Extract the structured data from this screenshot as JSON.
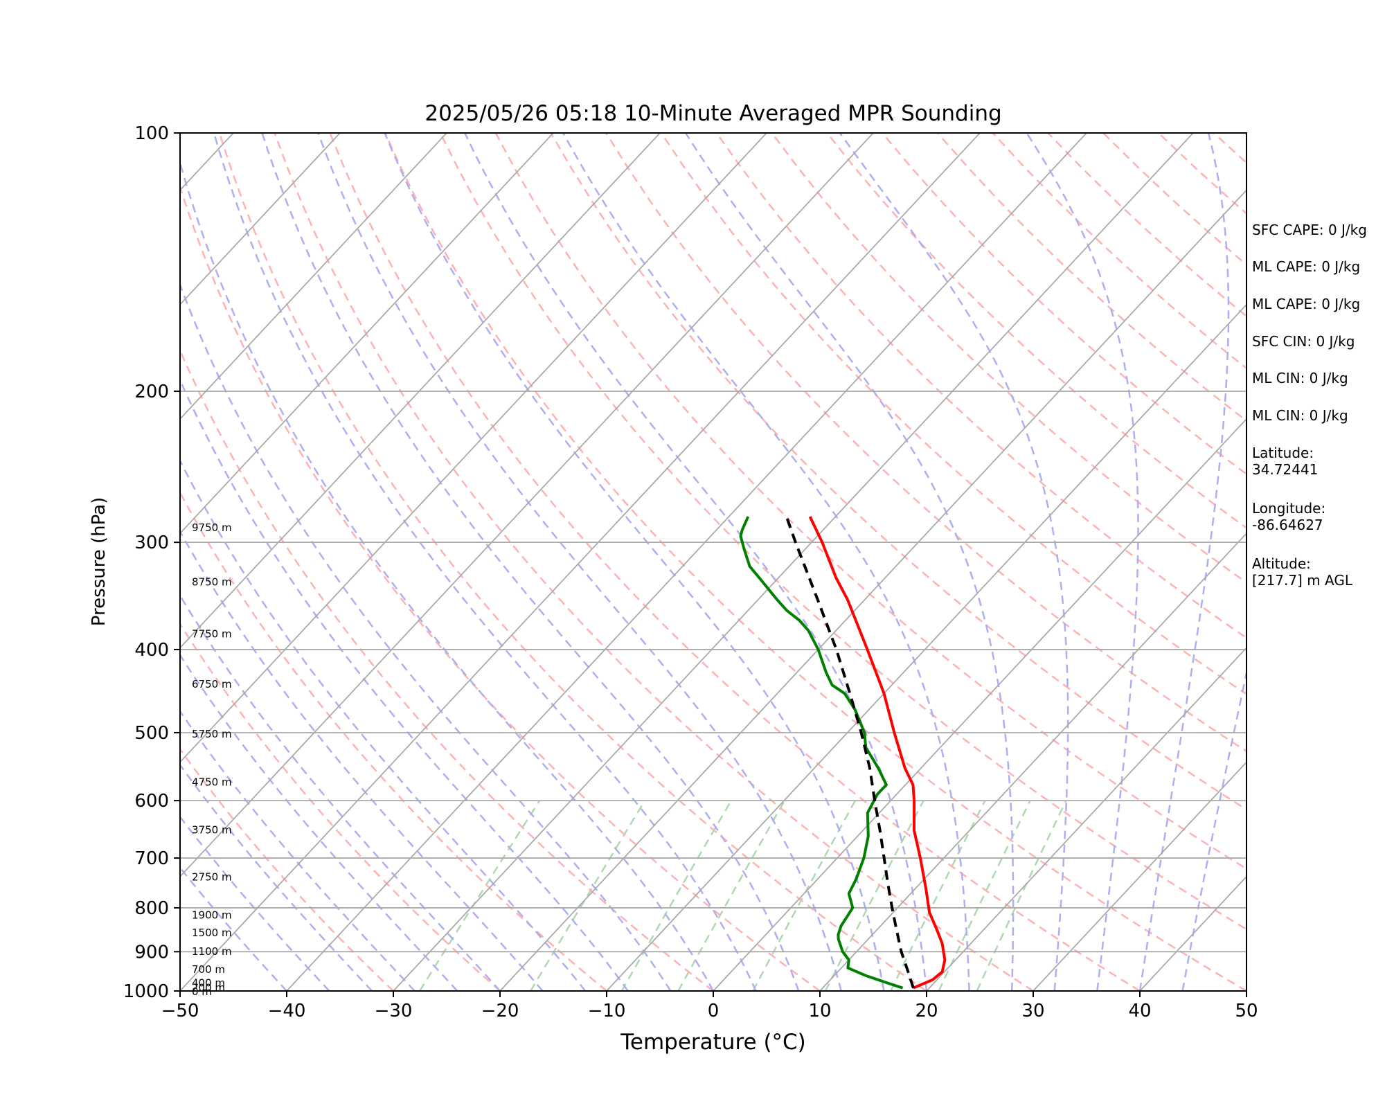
{
  "chart_data": {
    "type": "line",
    "title": "2025/05/26 05:18 10-Minute Averaged MPR Sounding",
    "xlabel": "Temperature (°C)",
    "ylabel": "Pressure (hPa)",
    "xlim": [
      -50,
      50
    ],
    "ylim": [
      1000,
      100
    ],
    "y_scale": "log",
    "grid": true,
    "x_ticks": [
      "−50",
      "−40",
      "−30",
      "−20",
      "−10",
      "0",
      "10",
      "20",
      "30",
      "40",
      "50"
    ],
    "y_ticks": [
      "100",
      "200",
      "300",
      "400",
      "500",
      "600",
      "700",
      "800",
      "900",
      "1000"
    ],
    "height_labels": [
      {
        "pressure": 1000,
        "label": "0 m"
      },
      {
        "pressure": 990,
        "label": "200 m"
      },
      {
        "pressure": 977,
        "label": "400 m"
      },
      {
        "pressure": 942,
        "label": "700 m"
      },
      {
        "pressure": 898,
        "label": "1100 m"
      },
      {
        "pressure": 854,
        "label": "1500 m"
      },
      {
        "pressure": 814,
        "label": "1900 m"
      },
      {
        "pressure": 735,
        "label": "2750 m"
      },
      {
        "pressure": 648,
        "label": "3750 m"
      },
      {
        "pressure": 570,
        "label": "4750 m"
      },
      {
        "pressure": 501,
        "label": "5750 m"
      },
      {
        "pressure": 438,
        "label": "6750 m"
      },
      {
        "pressure": 383,
        "label": "7750 m"
      },
      {
        "pressure": 333,
        "label": "8750 m"
      },
      {
        "pressure": 288,
        "label": "9750 m"
      }
    ],
    "series": [
      {
        "role": "temperature",
        "color": "#ff0000",
        "style": "solid",
        "points": [
          {
            "p": 992,
            "t": 18.5
          },
          {
            "p": 970,
            "t": 19.6
          },
          {
            "p": 950,
            "t": 19.8
          },
          {
            "p": 920,
            "t": 19.0
          },
          {
            "p": 880,
            "t": 17.3
          },
          {
            "p": 850,
            "t": 15.7
          },
          {
            "p": 810,
            "t": 13.4
          },
          {
            "p": 760,
            "t": 11.0
          },
          {
            "p": 700,
            "t": 7.8
          },
          {
            "p": 650,
            "t": 4.8
          },
          {
            "p": 600,
            "t": 2.2
          },
          {
            "p": 575,
            "t": 0.7
          },
          {
            "p": 550,
            "t": -1.5
          },
          {
            "p": 500,
            "t": -5.6
          },
          {
            "p": 450,
            "t": -10.0
          },
          {
            "p": 400,
            "t": -15.4
          },
          {
            "p": 350,
            "t": -21.6
          },
          {
            "p": 330,
            "t": -24.6
          },
          {
            "p": 300,
            "t": -29.0
          },
          {
            "p": 280,
            "t": -32.4
          }
        ]
      },
      {
        "role": "dewpoint",
        "color": "#008000",
        "style": "solid",
        "points": [
          {
            "p": 992,
            "t": 17.5
          },
          {
            "p": 980,
            "t": 15.8
          },
          {
            "p": 960,
            "t": 13.0
          },
          {
            "p": 940,
            "t": 10.6
          },
          {
            "p": 920,
            "t": 10.0
          },
          {
            "p": 900,
            "t": 8.7
          },
          {
            "p": 870,
            "t": 7.2
          },
          {
            "p": 860,
            "t": 6.8
          },
          {
            "p": 840,
            "t": 6.3
          },
          {
            "p": 800,
            "t": 5.8
          },
          {
            "p": 770,
            "t": 4.2
          },
          {
            "p": 740,
            "t": 3.6
          },
          {
            "p": 700,
            "t": 2.5
          },
          {
            "p": 660,
            "t": 1.0
          },
          {
            "p": 620,
            "t": -1.1
          },
          {
            "p": 590,
            "t": -1.8
          },
          {
            "p": 575,
            "t": -1.8
          },
          {
            "p": 550,
            "t": -4.0
          },
          {
            "p": 520,
            "t": -7.0
          },
          {
            "p": 500,
            "t": -8.4
          },
          {
            "p": 470,
            "t": -11.3
          },
          {
            "p": 450,
            "t": -13.7
          },
          {
            "p": 440,
            "t": -15.6
          },
          {
            "p": 425,
            "t": -17.3
          },
          {
            "p": 400,
            "t": -20.0
          },
          {
            "p": 380,
            "t": -22.6
          },
          {
            "p": 370,
            "t": -24.3
          },
          {
            "p": 360,
            "t": -26.4
          },
          {
            "p": 350,
            "t": -28.2
          },
          {
            "p": 330,
            "t": -31.8
          },
          {
            "p": 320,
            "t": -33.7
          },
          {
            "p": 305,
            "t": -35.8
          },
          {
            "p": 295,
            "t": -37.2
          },
          {
            "p": 290,
            "t": -37.6
          },
          {
            "p": 280,
            "t": -38.2
          }
        ]
      },
      {
        "role": "parcel",
        "color": "#000000",
        "style": "dashed",
        "points": [
          {
            "p": 992,
            "t": 18.5
          },
          {
            "p": 950,
            "t": 16.6
          },
          {
            "p": 900,
            "t": 14.2
          },
          {
            "p": 850,
            "t": 11.9
          },
          {
            "p": 800,
            "t": 9.5
          },
          {
            "p": 750,
            "t": 7.0
          },
          {
            "p": 700,
            "t": 4.4
          },
          {
            "p": 650,
            "t": 1.6
          },
          {
            "p": 600,
            "t": -1.5
          },
          {
            "p": 550,
            "t": -4.8
          },
          {
            "p": 500,
            "t": -8.7
          },
          {
            "p": 450,
            "t": -13.2
          },
          {
            "p": 400,
            "t": -18.3
          },
          {
            "p": 350,
            "t": -24.4
          },
          {
            "p": 300,
            "t": -31.5
          },
          {
            "p": 280,
            "t": -34.6
          }
        ]
      }
    ]
  },
  "indices": [
    {
      "text": "SFC CAPE: 0 J/kg"
    },
    {
      "text": "ML CAPE: 0 J/kg"
    },
    {
      "text": "ML CAPE: 0 J/kg"
    },
    {
      "text": "SFC CIN: 0 J/kg"
    },
    {
      "text": "ML CIN: 0 J/kg"
    },
    {
      "text": "ML CIN: 0 J/kg"
    },
    {
      "text": "Latitude:\n34.72441"
    },
    {
      "text": "Longitude:\n-86.64627"
    },
    {
      "text": "Altitude:\n[217.7] m AGL"
    }
  ],
  "colors": {
    "isotherm": "#aaaaaa",
    "dry_adiabat": "#ffb2b2",
    "moist_adiabat": "#aeaef2",
    "mixing_ratio": "#b0d8b0"
  }
}
